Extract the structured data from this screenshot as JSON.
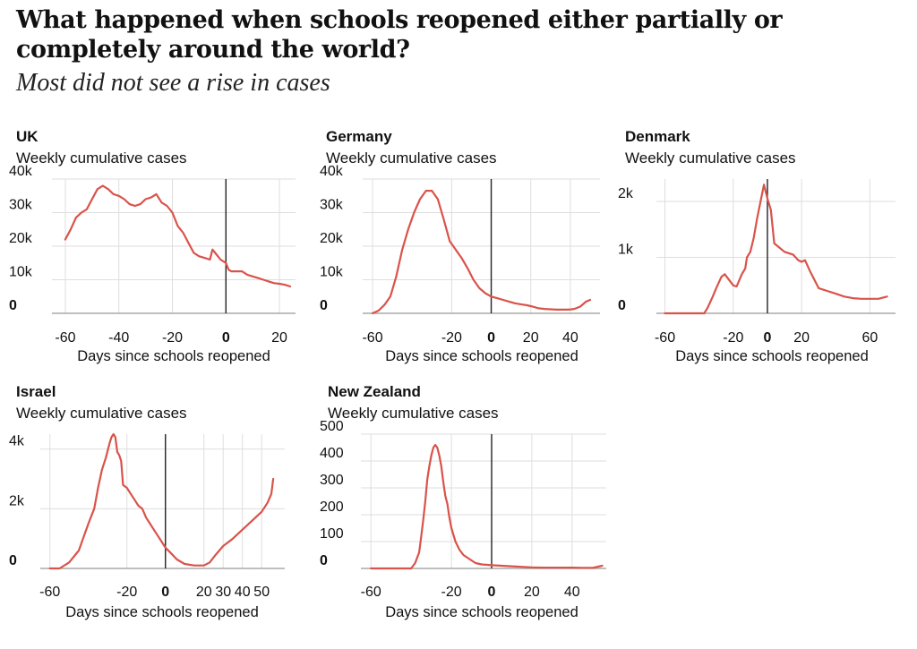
{
  "headline": "What happened when schools reopened either partially or completely around the world?",
  "subhead": "Most did not see a rise in cases",
  "colors": {
    "series": "#d9534a",
    "zero_line": "#222222",
    "grid": "#dedede"
  },
  "chart_data": [
    {
      "type": "line",
      "title": "UK",
      "subtitle": "Weekly cumulative cases",
      "xlabel": "Days since schools reopened",
      "xlim": [
        -65,
        26
      ],
      "ylim": [
        0,
        40000
      ],
      "xticks": [
        -60,
        -40,
        -20,
        0,
        20
      ],
      "xtick_labels": [
        "-60",
        "-40",
        "-20",
        "0",
        "20"
      ],
      "yticks": [
        0,
        10000,
        20000,
        30000,
        40000
      ],
      "ytick_labels": [
        "0",
        "10k",
        "20k",
        "30k",
        "40k"
      ],
      "x": [
        -60,
        -58,
        -56,
        -54,
        -52,
        -50,
        -48,
        -46,
        -44,
        -42,
        -40,
        -38,
        -36,
        -34,
        -32,
        -30,
        -28,
        -26,
        -24,
        -22,
        -20,
        -18,
        -16,
        -14,
        -12,
        -10,
        -8,
        -6,
        -5,
        -4,
        -2,
        0,
        1,
        2,
        4,
        6,
        8,
        10,
        12,
        14,
        16,
        18,
        20,
        22,
        24
      ],
      "y": [
        22000,
        25000,
        28500,
        30000,
        31000,
        34000,
        37000,
        38000,
        37000,
        35500,
        35000,
        34000,
        32500,
        32000,
        32500,
        34000,
        34500,
        35500,
        33000,
        32000,
        30000,
        26000,
        24000,
        21000,
        18000,
        17000,
        16500,
        16000,
        19000,
        18000,
        16000,
        15000,
        13000,
        12500,
        12500,
        12500,
        11500,
        11000,
        10500,
        10000,
        9500,
        9000,
        8800,
        8500,
        8000
      ]
    },
    {
      "type": "line",
      "title": "Germany",
      "subtitle": "Weekly cumulative cases",
      "xlabel": "Days since schools reopened",
      "xlim": [
        -65,
        55
      ],
      "ylim": [
        0,
        40000
      ],
      "xticks": [
        -60,
        -20,
        0,
        20,
        40
      ],
      "xtick_labels": [
        "-60",
        "-20",
        "0",
        "20",
        "40"
      ],
      "yticks": [
        0,
        10000,
        20000,
        30000,
        40000
      ],
      "ytick_labels": [
        "0",
        "10k",
        "20k",
        "30k",
        "40k"
      ],
      "x": [
        -60,
        -57,
        -54,
        -51,
        -48,
        -45,
        -42,
        -39,
        -36,
        -33,
        -30,
        -27,
        -24,
        -21,
        -18,
        -15,
        -12,
        -9,
        -6,
        -3,
        0,
        3,
        6,
        9,
        12,
        15,
        18,
        21,
        24,
        27,
        30,
        33,
        36,
        39,
        42,
        45,
        48,
        50
      ],
      "y": [
        0,
        800,
        2500,
        5000,
        11000,
        19000,
        25000,
        30000,
        34000,
        36500,
        36500,
        34000,
        28000,
        21500,
        19000,
        16500,
        13500,
        10000,
        7500,
        6000,
        5000,
        4500,
        4000,
        3500,
        3000,
        2700,
        2400,
        2000,
        1500,
        1300,
        1200,
        1100,
        1100,
        1100,
        1300,
        2000,
        3500,
        4000
      ]
    },
    {
      "type": "line",
      "title": "Denmark",
      "subtitle": "Weekly cumulative cases",
      "xlabel": "Days since schools reopened",
      "xlim": [
        -65,
        75
      ],
      "ylim": [
        0,
        2400
      ],
      "xticks": [
        -60,
        -20,
        0,
        20,
        60
      ],
      "xtick_labels": [
        "-60",
        "-20",
        "0",
        "20",
        "60"
      ],
      "yticks": [
        0,
        1000,
        2000
      ],
      "ytick_labels": [
        "0",
        "1k",
        "2k"
      ],
      "x": [
        -60,
        -50,
        -40,
        -37,
        -35,
        -32,
        -30,
        -27,
        -25,
        -22,
        -20,
        -18,
        -15,
        -13,
        -12,
        -10,
        -8,
        -6,
        -4,
        -2,
        0,
        2,
        4,
        6,
        10,
        15,
        18,
        20,
        22,
        25,
        30,
        35,
        40,
        45,
        50,
        55,
        60,
        65,
        70
      ],
      "y": [
        0,
        0,
        0,
        0,
        100,
        300,
        450,
        650,
        700,
        580,
        500,
        480,
        700,
        800,
        1000,
        1100,
        1350,
        1700,
        2000,
        2300,
        2050,
        1850,
        1250,
        1200,
        1100,
        1050,
        950,
        920,
        950,
        750,
        450,
        400,
        350,
        300,
        270,
        260,
        260,
        260,
        300
      ]
    },
    {
      "type": "line",
      "title": "Israel",
      "subtitle": "Weekly cumulative cases",
      "xlabel": "Days since schools reopened",
      "xlim": [
        -65,
        62
      ],
      "ylim": [
        0,
        4500
      ],
      "xticks": [
        -60,
        -20,
        0,
        20,
        30,
        40,
        50
      ],
      "xtick_labels": [
        "-60",
        "-20",
        "0",
        "20",
        "30",
        "40",
        "50"
      ],
      "yticks": [
        0,
        2000,
        4000
      ],
      "ytick_labels": [
        "0",
        "2k",
        "4k"
      ],
      "x": [
        -60,
        -55,
        -50,
        -45,
        -40,
        -37,
        -35,
        -33,
        -31,
        -29,
        -28,
        -27,
        -26,
        -25,
        -24,
        -23,
        -22,
        -20,
        -18,
        -16,
        -14,
        -12,
        -10,
        -8,
        -6,
        -4,
        -2,
        0,
        3,
        6,
        10,
        15,
        20,
        23,
        26,
        30,
        35,
        40,
        45,
        50,
        53,
        55,
        56
      ],
      "y": [
        0,
        0,
        200,
        600,
        1500,
        2000,
        2700,
        3300,
        3700,
        4200,
        4400,
        4500,
        4400,
        3900,
        3800,
        3600,
        2800,
        2700,
        2500,
        2300,
        2100,
        2000,
        1700,
        1500,
        1300,
        1100,
        900,
        700,
        500,
        300,
        150,
        100,
        100,
        200,
        450,
        750,
        1000,
        1300,
        1600,
        1900,
        2200,
        2500,
        3000
      ]
    },
    {
      "type": "line",
      "title": "New Zealand",
      "subtitle": "Weekly cumulative cases",
      "xlabel": "Days since schools reopened",
      "xlim": [
        -65,
        57
      ],
      "ylim": [
        0,
        500
      ],
      "xticks": [
        -60,
        -20,
        0,
        20,
        40
      ],
      "xtick_labels": [
        "-60",
        "-20",
        "0",
        "20",
        "40"
      ],
      "yticks": [
        0,
        100,
        200,
        300,
        400,
        500
      ],
      "ytick_labels": [
        "0",
        "100",
        "200",
        "300",
        "400",
        "500"
      ],
      "x": [
        -60,
        -50,
        -40,
        -38,
        -36,
        -35,
        -34,
        -33,
        -32,
        -31,
        -30,
        -29,
        -28,
        -27,
        -26,
        -25,
        -24,
        -23,
        -22,
        -21,
        -20,
        -18,
        -16,
        -14,
        -12,
        -10,
        -8,
        -5,
        0,
        5,
        10,
        15,
        20,
        25,
        30,
        35,
        40,
        45,
        50,
        55
      ],
      "y": [
        0,
        0,
        0,
        20,
        60,
        120,
        180,
        250,
        330,
        380,
        420,
        450,
        460,
        450,
        420,
        380,
        320,
        270,
        240,
        190,
        150,
        100,
        70,
        50,
        40,
        30,
        20,
        15,
        12,
        10,
        8,
        6,
        4,
        3,
        3,
        3,
        3,
        2,
        2,
        10
      ]
    }
  ]
}
